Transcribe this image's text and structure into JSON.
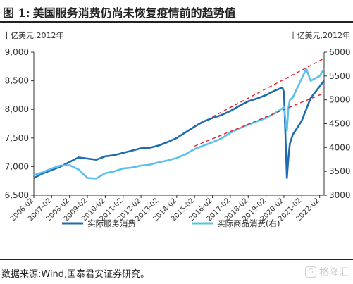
{
  "figure": {
    "number": "图 1:",
    "title": "美国服务消费仍尚未恢复疫情前的趋势值"
  },
  "source": "数据来源:Wind,国泰君安证券研究。",
  "watermark": {
    "logo_char": "G",
    "text": "格隆汇"
  },
  "colors": {
    "services": "#1f6bb0",
    "goods": "#5bc0eb",
    "trend": "#e8202a",
    "axis": "#333333"
  },
  "chart_data": {
    "type": "line",
    "x": [
      "2006-02",
      "2006-08",
      "2007-02",
      "2007-08",
      "2008-02",
      "2008-08",
      "2009-02",
      "2009-08",
      "2010-02",
      "2010-08",
      "2011-02",
      "2011-08",
      "2012-02",
      "2012-08",
      "2013-02",
      "2013-08",
      "2014-02",
      "2014-08",
      "2015-02",
      "2015-08",
      "2016-02",
      "2016-08",
      "2017-02",
      "2017-08",
      "2018-02",
      "2018-08",
      "2019-02",
      "2019-08",
      "2020-01",
      "2020-02",
      "2020-04",
      "2020-05",
      "2020-06",
      "2020-08",
      "2021-02",
      "2021-05",
      "2021-08",
      "2022-02",
      "2022-05"
    ],
    "xticks": [
      "2006-02",
      "2007-02",
      "2008-02",
      "2009-02",
      "2010-02",
      "2011-02",
      "2012-02",
      "2013-02",
      "2014-02",
      "2015-02",
      "2016-02",
      "2017-02",
      "2018-02",
      "2019-02",
      "2020-02",
      "2021-02",
      "2022-02"
    ],
    "left_axis": {
      "unit": "十亿美元,2012年",
      "ylim": [
        6500,
        9000
      ],
      "ticks": [
        6500,
        7000,
        7500,
        8000,
        8500,
        9000
      ],
      "tick_labels": [
        "6,500",
        "7,000",
        "7,500",
        "8,000",
        "8,500",
        "9,000"
      ]
    },
    "right_axis": {
      "unit": "十亿美元,2012年",
      "ylim": [
        3000,
        6000
      ],
      "ticks": [
        3000,
        3500,
        4000,
        4500,
        5000,
        5500,
        6000
      ]
    },
    "series": [
      {
        "name": "实际服务消费",
        "axis": "left",
        "color": "#1f6bb0",
        "values": [
          6800,
          6880,
          6940,
          7000,
          7080,
          7160,
          7140,
          7120,
          7180,
          7200,
          7240,
          7280,
          7320,
          7330,
          7370,
          7430,
          7500,
          7600,
          7700,
          7790,
          7850,
          7900,
          7970,
          8060,
          8140,
          8190,
          8250,
          8330,
          8380,
          8300,
          6800,
          7150,
          7400,
          7560,
          7800,
          8000,
          8200,
          8400,
          8500
        ]
      },
      {
        "name": "实际商品消费(右)",
        "axis": "right",
        "color": "#5bc0eb",
        "values": [
          3420,
          3480,
          3560,
          3620,
          3630,
          3540,
          3360,
          3350,
          3460,
          3500,
          3560,
          3580,
          3620,
          3640,
          3690,
          3730,
          3780,
          3860,
          3970,
          4040,
          4110,
          4190,
          4310,
          4400,
          4480,
          4550,
          4620,
          4720,
          4820,
          4840,
          4350,
          4820,
          5000,
          5050,
          5450,
          5650,
          5400,
          5500,
          5650
        ]
      },
      {
        "name": "服务消费趋势",
        "axis": "left",
        "color": "#e8202a",
        "dashed": true,
        "x": [
          "2016-02",
          "2022-05"
        ],
        "values": [
          7870,
          8890
        ]
      },
      {
        "name": "商品消费趋势",
        "axis": "right",
        "color": "#e8202a",
        "dashed": true,
        "x": [
          "2015-02",
          "2022-05"
        ],
        "values": [
          4030,
          5140
        ]
      }
    ],
    "legend": [
      "实际服务消费",
      "实际商品消费(右)"
    ],
    "legend_placement": "bottom",
    "grid": false
  }
}
